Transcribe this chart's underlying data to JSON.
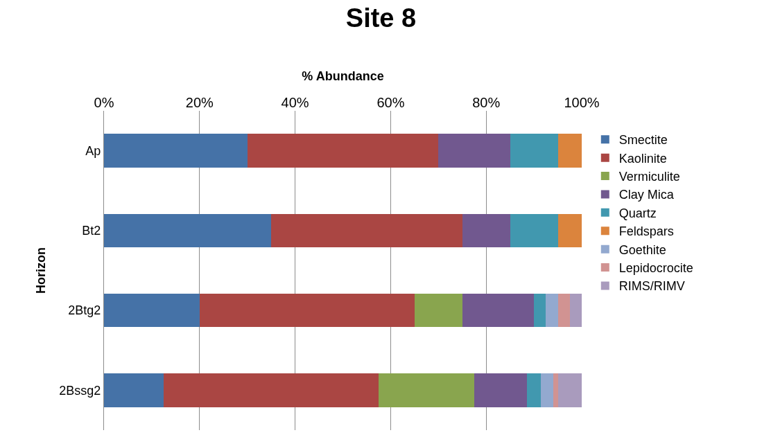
{
  "chart_data": {
    "type": "bar",
    "orientation": "horizontal",
    "stacked": true,
    "title": "Site 8",
    "xlabel": "% Abundance",
    "ylabel": "Horizon",
    "categories": [
      "Ap",
      "Bt2",
      "2Btg2",
      "2Bssg2"
    ],
    "series": [
      {
        "name": "Smectite",
        "color": "#4572a7",
        "values": [
          30,
          35,
          20,
          12.5
        ]
      },
      {
        "name": "Kaolinite",
        "color": "#aa4643",
        "values": [
          40,
          40,
          45,
          45
        ]
      },
      {
        "name": "Vermiculite",
        "color": "#89a54e",
        "values": [
          0,
          0,
          10,
          20
        ]
      },
      {
        "name": "Clay Mica",
        "color": "#71588f",
        "values": [
          15,
          10,
          15,
          11
        ]
      },
      {
        "name": "Quartz",
        "color": "#4198af",
        "values": [
          10,
          10,
          2.5,
          3
        ]
      },
      {
        "name": "Feldspars",
        "color": "#db843d",
        "values": [
          5,
          5,
          0,
          0
        ]
      },
      {
        "name": "Goethite",
        "color": "#93a9cf",
        "values": [
          0,
          0,
          2.5,
          2.5
        ]
      },
      {
        "name": "Lepidocrocite",
        "color": "#d19392",
        "values": [
          0,
          0,
          2.5,
          1
        ]
      },
      {
        "name": "RIMS/RIMV",
        "color": "#a99bbd",
        "values": [
          0,
          0,
          2.5,
          5
        ]
      }
    ],
    "xlim": [
      0,
      100
    ],
    "xticks": [
      {
        "value": 0,
        "label": "0%"
      },
      {
        "value": 20,
        "label": "20%"
      },
      {
        "value": 40,
        "label": "40%"
      },
      {
        "value": 60,
        "label": "60%"
      },
      {
        "value": 80,
        "label": "80%"
      },
      {
        "value": 100,
        "label": "100%"
      }
    ],
    "grid": "x",
    "legend": "right"
  }
}
